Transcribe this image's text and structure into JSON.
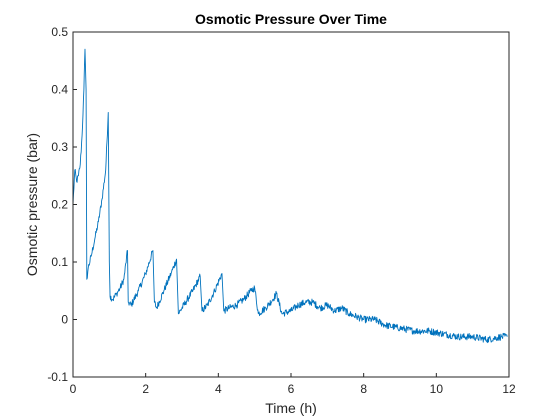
{
  "chart_data": {
    "type": "line",
    "title": "Osmotic Pressure Over Time",
    "xlabel": "Time (h)",
    "ylabel": "Osmotic pressure (bar)",
    "xlim": [
      0,
      12
    ],
    "ylim": [
      -0.1,
      0.5
    ],
    "xticks": [
      "0",
      "2",
      "4",
      "6",
      "8",
      "10",
      "12"
    ],
    "yticks": [
      "-0.1",
      "0",
      "0.1",
      "0.2",
      "0.3",
      "0.4",
      "0.5"
    ],
    "grid": false,
    "legend": "none",
    "series": [
      {
        "color": "#0072BD",
        "x": [
          0.0,
          0.05,
          0.1,
          0.15,
          0.2,
          0.25,
          0.3,
          0.33,
          0.36,
          0.38,
          0.42,
          0.5,
          0.6,
          0.7,
          0.8,
          0.9,
          0.97,
          1.0,
          1.02,
          1.1,
          1.2,
          1.3,
          1.4,
          1.5,
          1.52,
          1.6,
          1.8,
          2.0,
          2.2,
          2.24,
          2.3,
          2.5,
          2.7,
          2.85,
          2.9,
          3.1,
          3.3,
          3.5,
          3.55,
          3.7,
          3.9,
          4.1,
          4.15,
          4.3,
          4.5,
          4.7,
          4.9,
          5.0,
          5.1,
          5.3,
          5.5,
          5.6,
          5.75,
          6.0,
          6.2,
          6.4,
          6.6,
          6.8,
          7.0,
          7.2,
          7.4,
          7.6,
          7.8,
          8.0,
          8.3,
          8.6,
          9.0,
          9.4,
          9.8,
          10.2,
          10.6,
          11.0,
          11.4,
          11.8,
          11.95
        ],
        "values": [
          0.2,
          0.26,
          0.24,
          0.25,
          0.27,
          0.32,
          0.4,
          0.47,
          0.4,
          0.07,
          0.09,
          0.11,
          0.14,
          0.17,
          0.21,
          0.26,
          0.36,
          0.1,
          0.04,
          0.035,
          0.045,
          0.055,
          0.07,
          0.12,
          0.03,
          0.025,
          0.05,
          0.08,
          0.12,
          0.03,
          0.02,
          0.05,
          0.08,
          0.105,
          0.01,
          0.03,
          0.05,
          0.075,
          0.015,
          0.025,
          0.05,
          0.08,
          0.015,
          0.02,
          0.025,
          0.035,
          0.05,
          0.055,
          0.01,
          0.02,
          0.035,
          0.045,
          0.01,
          0.015,
          0.025,
          0.03,
          0.03,
          0.02,
          0.025,
          0.015,
          0.02,
          0.01,
          0.005,
          0.0,
          0.0,
          -0.01,
          -0.015,
          -0.02,
          -0.02,
          -0.025,
          -0.03,
          -0.03,
          -0.035,
          -0.03,
          -0.03
        ]
      }
    ]
  }
}
